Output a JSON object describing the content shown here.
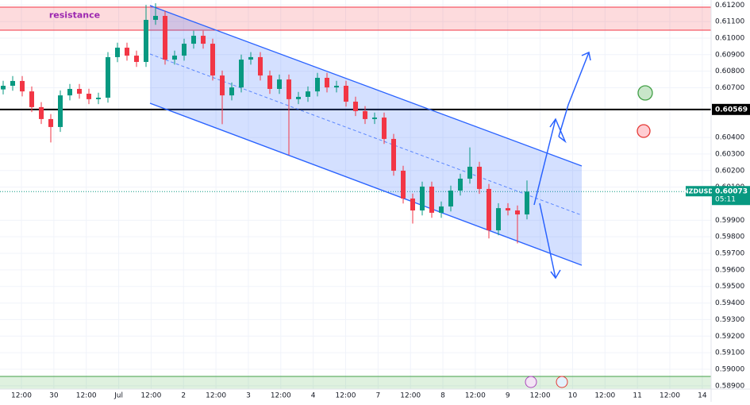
{
  "chart_data": {
    "type": "candlestick",
    "symbol": "NZDUSD",
    "countdown": "05:11",
    "ylim": [
      0.5888,
      0.6123
    ],
    "yticks": [
      {
        "value": 0.612,
        "label": "0.61200"
      },
      {
        "value": 0.611,
        "label": "0.61100"
      },
      {
        "value": 0.61,
        "label": "0.61000"
      },
      {
        "value": 0.609,
        "label": "0.60900"
      },
      {
        "value": 0.608,
        "label": "0.60800"
      },
      {
        "value": 0.607,
        "label": "0.60700"
      },
      {
        "value": 0.604,
        "label": "0.60400"
      },
      {
        "value": 0.603,
        "label": "0.60300"
      },
      {
        "value": 0.602,
        "label": "0.60200"
      },
      {
        "value": 0.601,
        "label": "0.60100"
      },
      {
        "value": 0.599,
        "label": "0.59900"
      },
      {
        "value": 0.598,
        "label": "0.59800"
      },
      {
        "value": 0.597,
        "label": "0.59700"
      },
      {
        "value": 0.596,
        "label": "0.59600"
      },
      {
        "value": 0.595,
        "label": "0.59500"
      },
      {
        "value": 0.594,
        "label": "0.59400"
      },
      {
        "value": 0.593,
        "label": "0.59300"
      },
      {
        "value": 0.592,
        "label": "0.59200"
      },
      {
        "value": 0.591,
        "label": "0.59100"
      },
      {
        "value": 0.59,
        "label": "0.59000"
      },
      {
        "value": 0.589,
        "label": "0.58900"
      }
    ],
    "x_labels": [
      "12:00",
      "30",
      "12:00",
      "Jul",
      "12:00",
      "2",
      "12:00",
      "3",
      "12:00",
      "4",
      "12:00",
      "7",
      "12:00",
      "8",
      "12:00",
      "9",
      "12:00",
      "10",
      "12:00",
      "11",
      "12:00",
      "14"
    ],
    "grid": true,
    "up_color": "#089981",
    "down_color": "#f23645",
    "open": [
      0.6069,
      0.60712,
      0.60741,
      0.60678,
      0.60583,
      0.60511,
      0.60463,
      0.60654,
      0.60693,
      0.60664,
      0.60631,
      0.6064,
      0.60885,
      0.60942,
      0.60894,
      0.60856,
      0.6111,
      0.61134,
      0.6087,
      0.60894,
      0.60966,
      0.61014,
      0.60966,
      0.60774,
      0.60654,
      0.60702,
      0.6087,
      0.60885,
      0.60774,
      0.60693,
      0.6075,
      0.60631,
      0.60645,
      0.60678,
      0.6076,
      0.60702,
      0.60712,
      0.60616,
      0.60559,
      0.60511,
      0.6052,
      0.60391,
      0.60199,
      0.60031,
      0.59959,
      0.60103,
      0.59945,
      0.59983,
      0.60079,
      0.60151,
      0.60223,
      0.60089,
      0.59839,
      0.59973,
      0.59959,
      0.59935
    ],
    "high": [
      0.60742,
      0.60771,
      0.60771,
      0.60708,
      0.60613,
      0.60541,
      0.60684,
      0.60723,
      0.60723,
      0.60694,
      0.6067,
      0.60915,
      0.60972,
      0.60972,
      0.60924,
      0.612,
      0.6121,
      0.61164,
      0.60924,
      0.60996,
      0.61044,
      0.61044,
      0.60996,
      0.60804,
      0.60732,
      0.609,
      0.60915,
      0.60915,
      0.60804,
      0.6078,
      0.6078,
      0.60675,
      0.60708,
      0.6079,
      0.6079,
      0.60742,
      0.60742,
      0.60646,
      0.60589,
      0.6055,
      0.6055,
      0.60421,
      0.60229,
      0.60061,
      0.60133,
      0.60133,
      0.60013,
      0.60109,
      0.60181,
      0.6034,
      0.60253,
      0.60119,
      0.60003,
      0.60003,
      0.59989,
      0.6014
    ],
    "low": [
      0.6066,
      0.60682,
      0.60648,
      0.60553,
      0.60481,
      0.6037,
      0.60433,
      0.60624,
      0.60634,
      0.60601,
      0.60601,
      0.6061,
      0.60855,
      0.60864,
      0.60826,
      0.60826,
      0.6108,
      0.6084,
      0.6084,
      0.60864,
      0.60936,
      0.60936,
      0.60744,
      0.6048,
      0.60624,
      0.60672,
      0.6084,
      0.60744,
      0.60663,
      0.60663,
      0.60295,
      0.60601,
      0.60615,
      0.60648,
      0.60672,
      0.60672,
      0.60586,
      0.60529,
      0.60481,
      0.60481,
      0.60361,
      0.60169,
      0.60001,
      0.5988,
      0.59929,
      0.59915,
      0.59915,
      0.59953,
      0.60049,
      0.60121,
      0.60059,
      0.5979,
      0.59809,
      0.59929,
      0.5976,
      0.59905
    ],
    "close": [
      0.60712,
      0.60741,
      0.60678,
      0.60583,
      0.60511,
      0.60463,
      0.60654,
      0.60693,
      0.60664,
      0.60631,
      0.6064,
      0.60885,
      0.60942,
      0.60894,
      0.60856,
      0.6111,
      0.61134,
      0.6087,
      0.60894,
      0.60966,
      0.61014,
      0.60966,
      0.60774,
      0.60654,
      0.60702,
      0.6087,
      0.60885,
      0.60774,
      0.60693,
      0.6075,
      0.60631,
      0.60645,
      0.60678,
      0.6076,
      0.60702,
      0.60712,
      0.60616,
      0.60559,
      0.60511,
      0.6052,
      0.60391,
      0.60199,
      0.60031,
      0.59959,
      0.60103,
      0.59945,
      0.59983,
      0.60079,
      0.60151,
      0.60223,
      0.60089,
      0.59839,
      0.59973,
      0.59959,
      0.59935,
      0.60073
    ],
    "last_price": {
      "value": 0.60073,
      "label": "0.60073"
    },
    "level": {
      "value": 0.60569,
      "label": "0.60569"
    },
    "resistance_zone": {
      "label": "resistance",
      "top": 0.61187,
      "bottom": 0.61048
    },
    "support_zone": {
      "top": 0.58957,
      "bottom": 0.5888
    }
  }
}
